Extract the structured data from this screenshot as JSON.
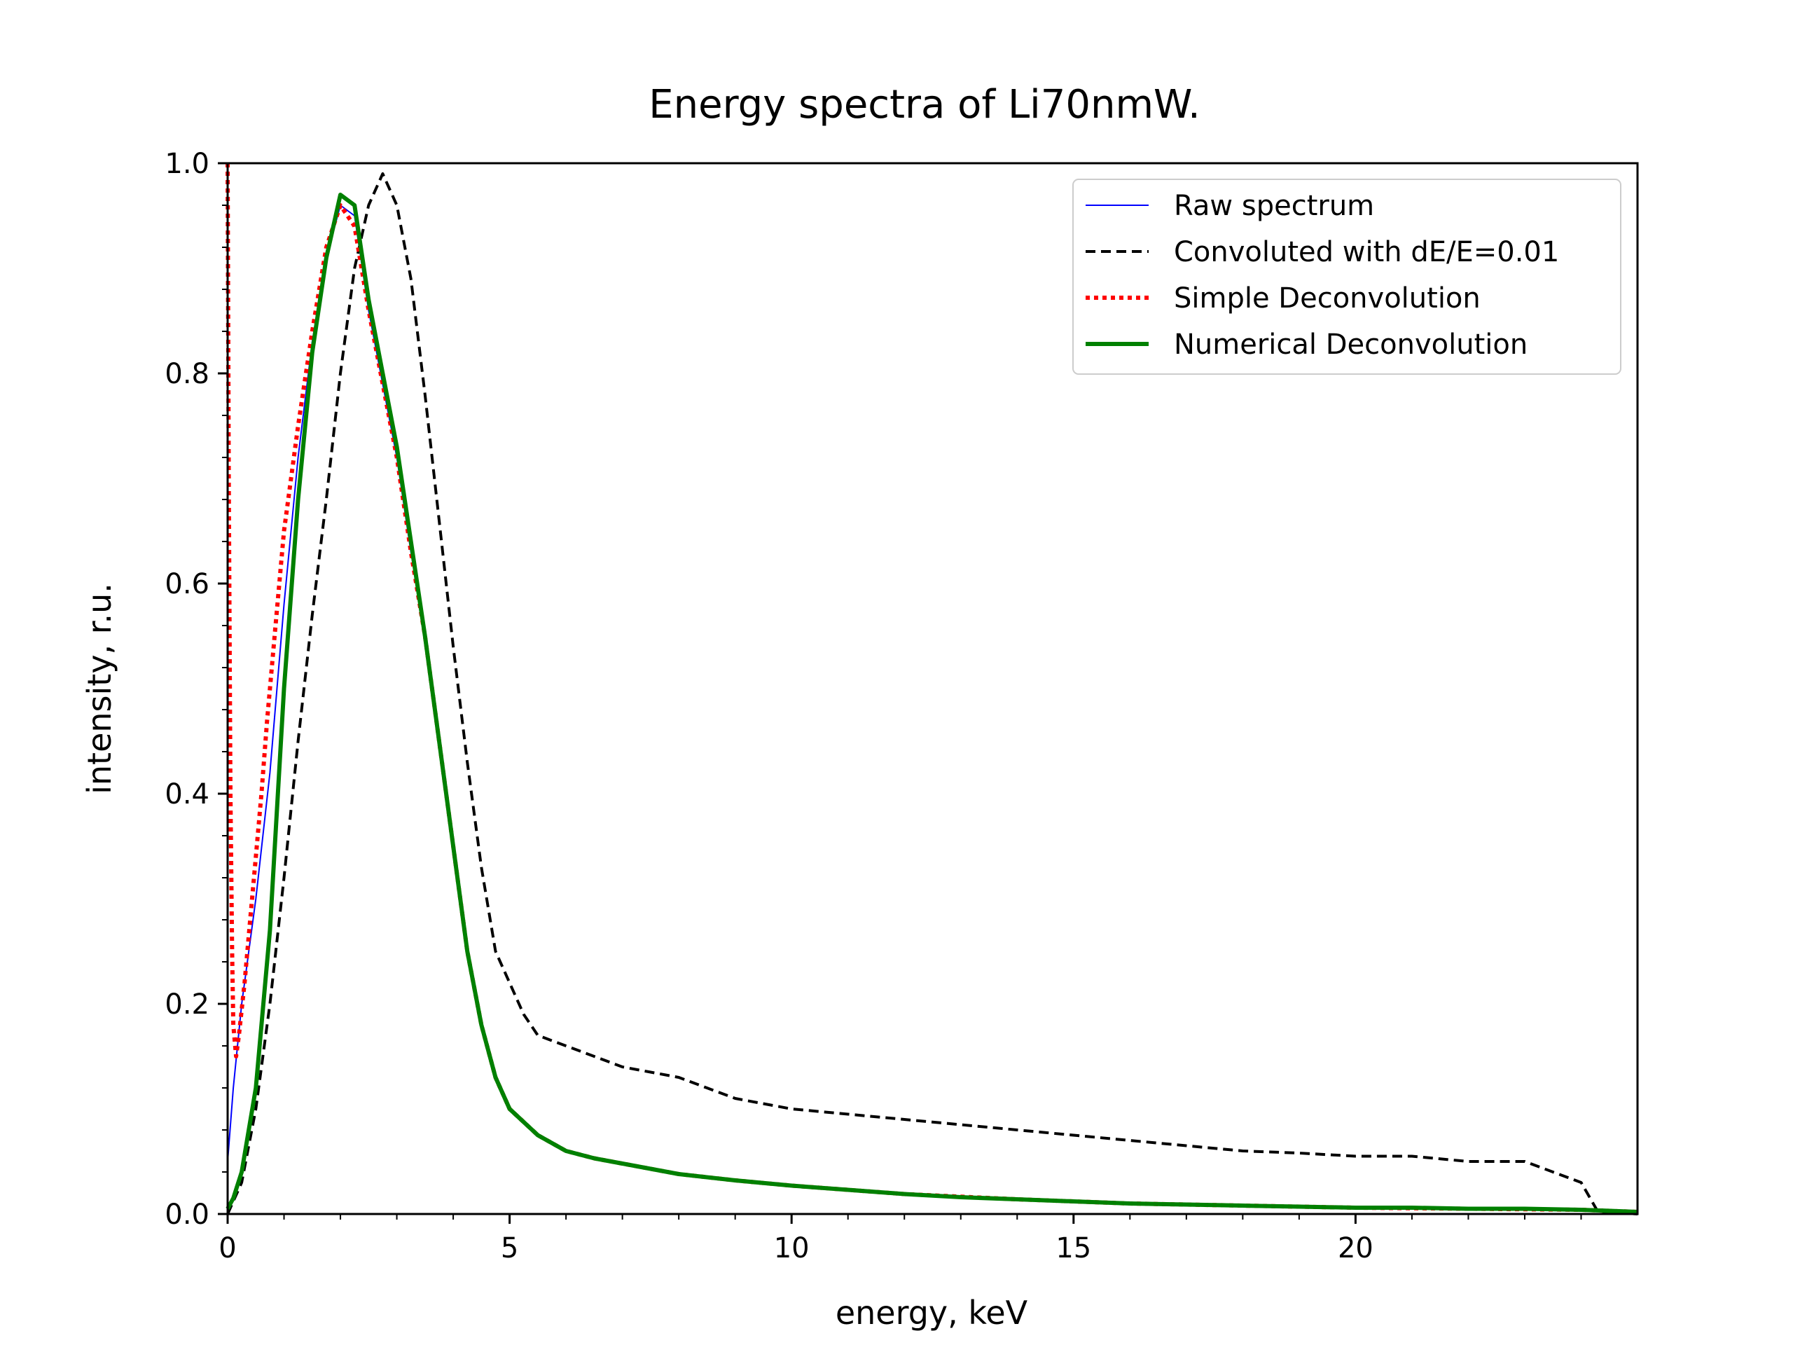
{
  "chart_data": {
    "type": "line",
    "title": "Energy spectra of Li70nmW.",
    "xlabel": "energy, keV",
    "ylabel": "intensity, r.u.",
    "xlim": [
      0,
      25
    ],
    "ylim": [
      0,
      1.0
    ],
    "x_ticks": [
      0,
      5,
      10,
      15,
      20
    ],
    "x_tick_labels": [
      "0",
      "5",
      "10",
      "15",
      "20"
    ],
    "y_ticks": [
      0.0,
      0.2,
      0.4,
      0.6,
      0.8,
      1.0
    ],
    "y_tick_labels": [
      "0.0",
      "0.2",
      "0.4",
      "0.6",
      "0.8",
      "1.0"
    ],
    "grid": false,
    "legend_position": "top-right",
    "series": [
      {
        "name": "Raw spectrum",
        "color": "#0000ff",
        "style": "solid-thin",
        "x": [
          0.0,
          0.1,
          0.25,
          0.5,
          0.75,
          1.0,
          1.25,
          1.5,
          1.75,
          2.0,
          2.25,
          2.5,
          2.75,
          3.0,
          3.25,
          3.5,
          3.75,
          4.0,
          4.25,
          4.5,
          4.75,
          5.0,
          5.5,
          6.0,
          6.5,
          7.0,
          7.5,
          8.0,
          9.0,
          10.0,
          11.0,
          12.0,
          13.0,
          14.0,
          15.0,
          16.0,
          17.0,
          18.0,
          19.0,
          20.0,
          21.0,
          22.0,
          23.0,
          24.0,
          25.0
        ],
        "y": [
          0.05,
          0.12,
          0.2,
          0.3,
          0.42,
          0.58,
          0.72,
          0.83,
          0.91,
          0.96,
          0.95,
          0.86,
          0.79,
          0.72,
          0.63,
          0.55,
          0.45,
          0.35,
          0.25,
          0.18,
          0.13,
          0.1,
          0.075,
          0.06,
          0.053,
          0.048,
          0.043,
          0.038,
          0.032,
          0.027,
          0.023,
          0.019,
          0.016,
          0.014,
          0.012,
          0.01,
          0.009,
          0.008,
          0.007,
          0.006,
          0.006,
          0.005,
          0.005,
          0.004,
          0.002
        ]
      },
      {
        "name": "Convoluted with dE/E=0.01",
        "color": "#000000",
        "style": "dashed",
        "x": [
          0.0,
          0.25,
          0.5,
          0.75,
          1.0,
          1.25,
          1.5,
          1.75,
          2.0,
          2.25,
          2.5,
          2.75,
          3.0,
          3.25,
          3.5,
          3.75,
          4.0,
          4.25,
          4.5,
          4.75,
          5.0,
          5.25,
          5.5,
          6.0,
          6.5,
          7.0,
          7.5,
          8.0,
          8.5,
          9.0,
          9.5,
          10.0,
          11.0,
          12.0,
          13.0,
          14.0,
          15.0,
          16.0,
          17.0,
          18.0,
          19.0,
          20.0,
          21.0,
          22.0,
          23.0,
          23.5,
          24.0,
          24.3,
          25.0
        ],
        "y": [
          0.0,
          0.03,
          0.1,
          0.2,
          0.32,
          0.45,
          0.57,
          0.68,
          0.8,
          0.9,
          0.96,
          0.99,
          0.96,
          0.89,
          0.78,
          0.66,
          0.54,
          0.43,
          0.33,
          0.25,
          0.22,
          0.19,
          0.17,
          0.16,
          0.15,
          0.14,
          0.135,
          0.13,
          0.12,
          0.11,
          0.105,
          0.1,
          0.095,
          0.09,
          0.085,
          0.08,
          0.075,
          0.07,
          0.065,
          0.06,
          0.058,
          0.055,
          0.055,
          0.05,
          0.05,
          0.04,
          0.03,
          0.002,
          0.0
        ]
      },
      {
        "name": "Simple Deconvolution",
        "color": "#ff0000",
        "style": "dotted",
        "x": [
          0.0,
          0.02,
          0.05,
          0.08,
          0.1,
          0.15,
          0.2,
          0.3,
          0.4,
          0.5,
          0.6,
          0.7,
          0.85,
          1.0,
          1.25,
          1.5,
          1.75,
          2.0,
          2.25,
          2.5,
          2.75,
          3.0,
          3.25,
          3.5,
          3.75,
          4.0,
          4.25,
          4.5,
          4.75,
          5.0,
          5.5,
          6.0,
          6.5,
          7.0,
          8.0,
          9.0,
          10.0,
          12.0,
          14.0,
          16.0,
          18.0,
          20.0,
          22.0,
          24.0,
          25.0
        ],
        "y": [
          1.0,
          0.7,
          0.4,
          0.25,
          0.18,
          0.15,
          0.17,
          0.22,
          0.28,
          0.34,
          0.4,
          0.47,
          0.56,
          0.65,
          0.75,
          0.84,
          0.92,
          0.96,
          0.94,
          0.86,
          0.79,
          0.72,
          0.63,
          0.55,
          0.45,
          0.35,
          0.25,
          0.18,
          0.13,
          0.1,
          0.075,
          0.06,
          0.053,
          0.048,
          0.038,
          0.032,
          0.027,
          0.019,
          0.014,
          0.01,
          0.008,
          0.006,
          0.005,
          0.004,
          0.002
        ]
      },
      {
        "name": "Numerical Deconvolution",
        "color": "#008000",
        "style": "solid-thick",
        "x": [
          0.0,
          0.1,
          0.25,
          0.5,
          0.75,
          1.0,
          1.25,
          1.5,
          1.75,
          2.0,
          2.25,
          2.5,
          2.75,
          3.0,
          3.25,
          3.5,
          3.75,
          4.0,
          4.25,
          4.5,
          4.75,
          5.0,
          5.5,
          6.0,
          6.5,
          7.0,
          7.5,
          8.0,
          9.0,
          10.0,
          11.0,
          12.0,
          13.0,
          14.0,
          15.0,
          16.0,
          17.0,
          18.0,
          19.0,
          20.0,
          21.0,
          22.0,
          23.0,
          24.0,
          25.0
        ],
        "y": [
          0.005,
          0.015,
          0.04,
          0.12,
          0.27,
          0.5,
          0.68,
          0.82,
          0.91,
          0.97,
          0.96,
          0.87,
          0.8,
          0.73,
          0.64,
          0.55,
          0.45,
          0.35,
          0.25,
          0.18,
          0.13,
          0.1,
          0.075,
          0.06,
          0.053,
          0.048,
          0.043,
          0.038,
          0.032,
          0.027,
          0.023,
          0.019,
          0.016,
          0.014,
          0.012,
          0.01,
          0.009,
          0.008,
          0.007,
          0.006,
          0.006,
          0.005,
          0.005,
          0.004,
          0.002
        ]
      }
    ]
  }
}
